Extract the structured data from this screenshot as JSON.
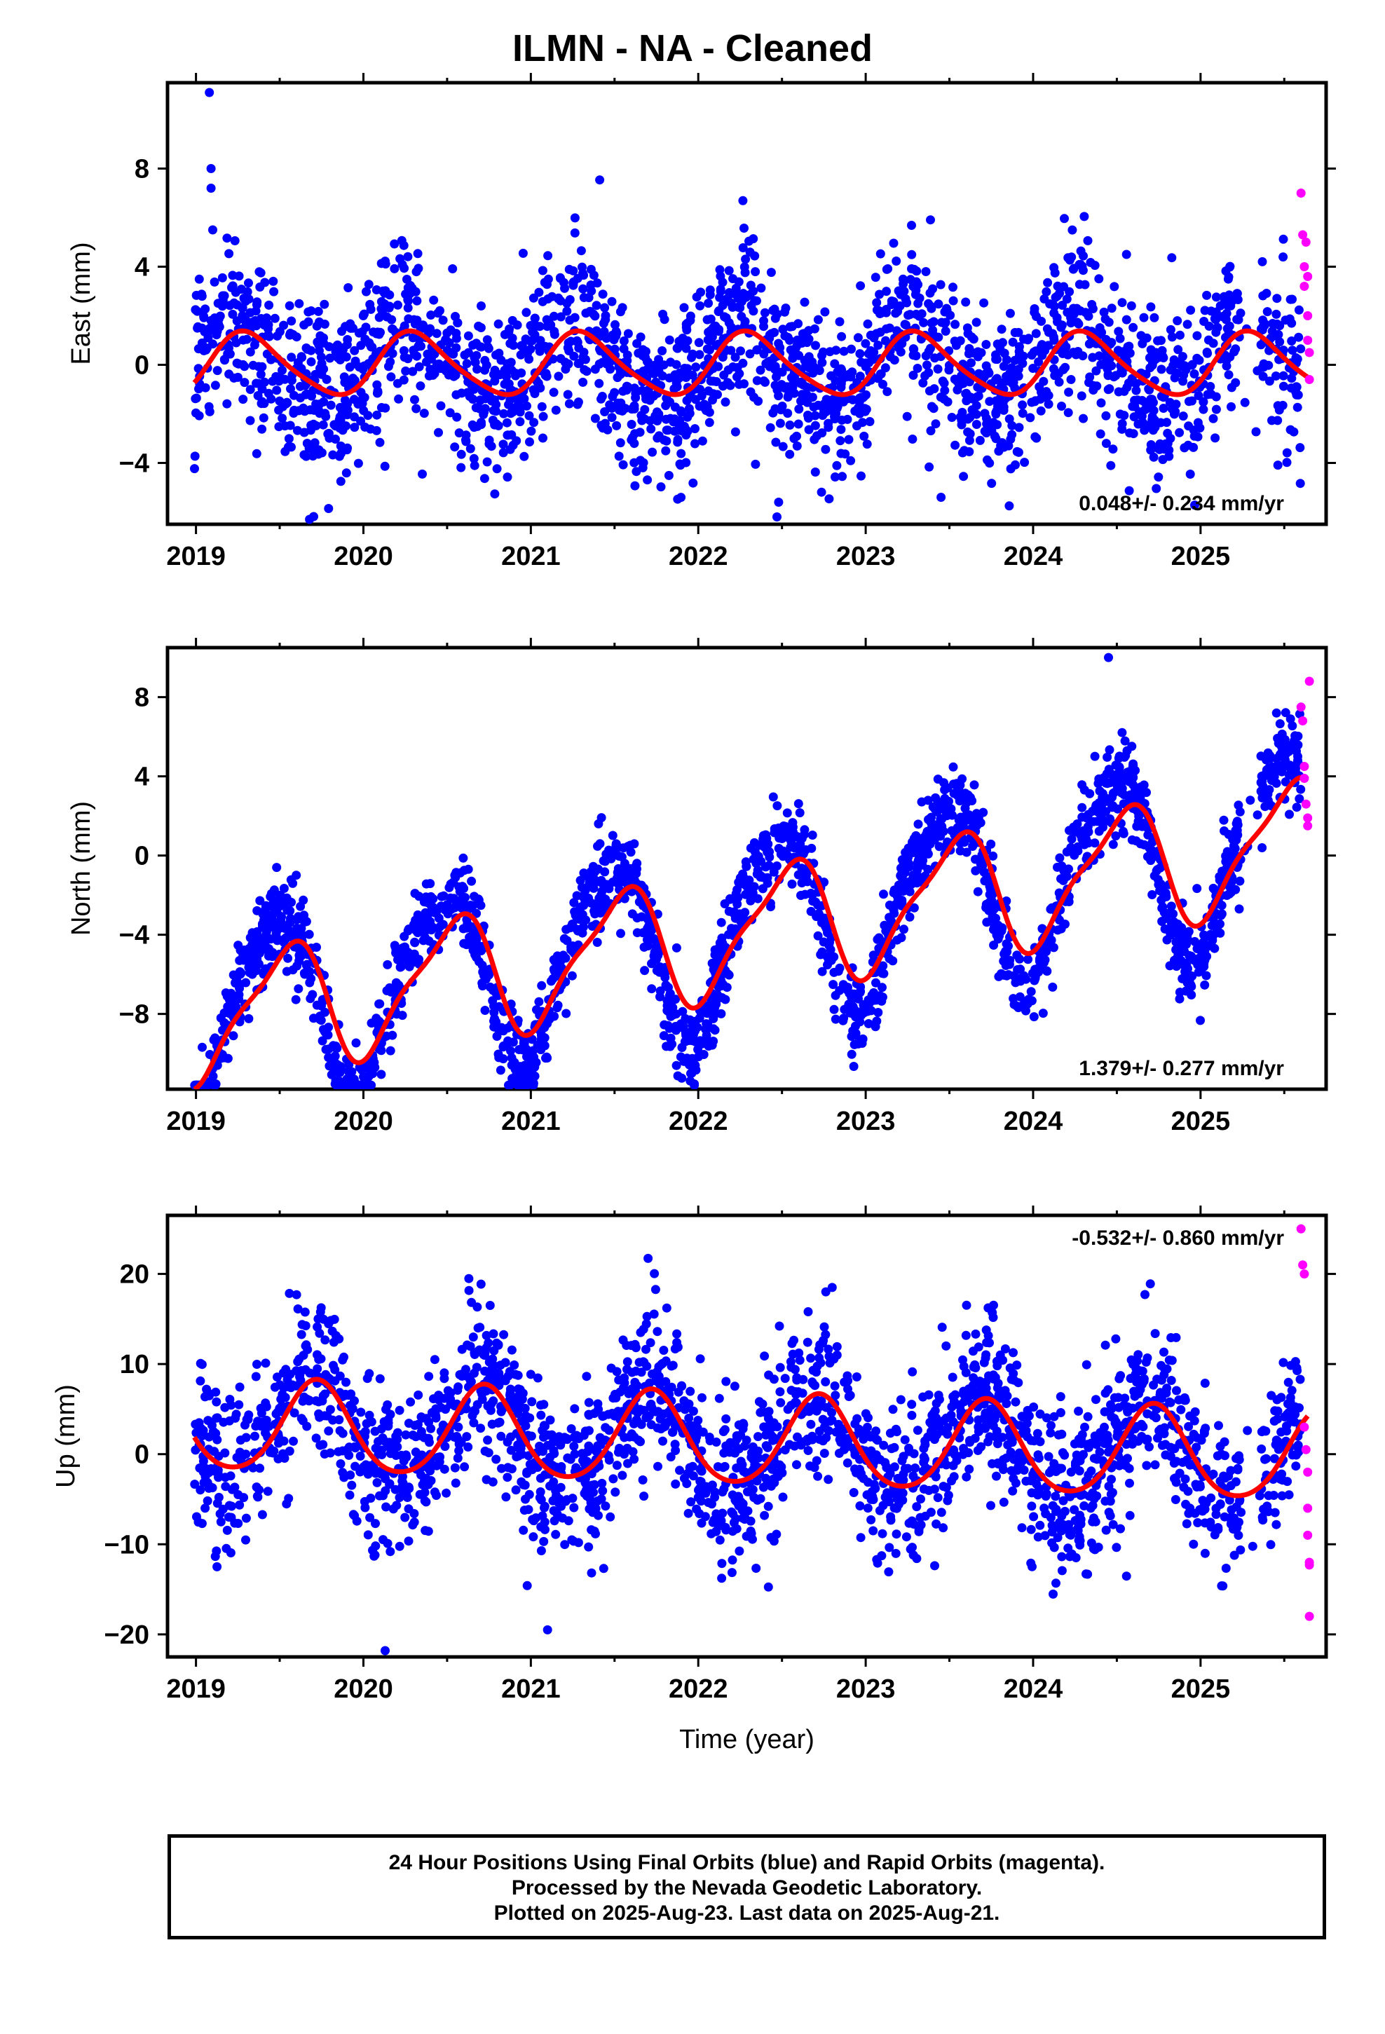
{
  "title": "ILMN  - NA - Cleaned",
  "colors": {
    "final": "#0000ff",
    "rapid": "#ff00ff",
    "model": "#ff0000",
    "axes": "#000000"
  },
  "chart_data": [
    {
      "type": "scatter",
      "ylabel": "East (mm)",
      "xlabel": "",
      "xlim": [
        2018.83,
        2025.75
      ],
      "ylim": [
        -6.5,
        11.5
      ],
      "xticks": [
        "2019",
        "2020",
        "2021",
        "2022",
        "2023",
        "2024",
        "2025"
      ],
      "yticks": [
        "-4",
        "0",
        "4",
        "8"
      ],
      "rate": "0.048+/- 0.234 mm/yr",
      "rate_pos": "bottom-right",
      "model": {
        "amp1": 1.25,
        "phase1": 0.06,
        "amp2": 0.2,
        "phase2": 0.1,
        "trend": 0.0,
        "offset": 0.0
      },
      "final_scatter": {
        "start": 2018.99,
        "end": 2025.6,
        "sd": 1.7,
        "anomaly": 0.6
      },
      "rapid_points": [
        [
          2025.6,
          7.0
        ],
        [
          2025.61,
          5.3
        ],
        [
          2025.62,
          4.0
        ],
        [
          2025.62,
          3.2
        ],
        [
          2025.63,
          5.0
        ],
        [
          2025.64,
          3.6
        ],
        [
          2025.64,
          2.0
        ],
        [
          2025.64,
          1.0
        ],
        [
          2025.65,
          0.5
        ],
        [
          2025.65,
          -0.6
        ]
      ],
      "outliers": [
        [
          2019.08,
          11.1
        ],
        [
          2019.09,
          8.0
        ],
        [
          2019.09,
          7.2
        ],
        [
          2019.1,
          5.5
        ],
        [
          2022.47,
          -6.2
        ],
        [
          2022.48,
          -5.6
        ],
        [
          2023.45,
          -5.4
        ]
      ]
    },
    {
      "type": "scatter",
      "ylabel": "North (mm)",
      "xlabel": "",
      "xlim": [
        2018.83,
        2025.75
      ],
      "ylim": [
        -11.8,
        10.5
      ],
      "xticks": [
        "2019",
        "2020",
        "2021",
        "2022",
        "2023",
        "2024",
        "2025"
      ],
      "yticks": [
        "-8",
        "-4",
        "0",
        "4",
        "8"
      ],
      "rate": "1.379+/- 0.277 mm/yr",
      "rate_pos": "bottom-right",
      "model": {
        "amp1": 3.0,
        "phase1": 0.28,
        "amp2": 0.8,
        "phase2": 0.05,
        "trend": 1.379,
        "offset": -4.2
      },
      "final_scatter": {
        "start": 2018.99,
        "end": 2025.6,
        "sd": 1.1,
        "anomaly": 2.2
      },
      "rapid_points": [
        [
          2025.6,
          7.5
        ],
        [
          2025.61,
          6.8
        ],
        [
          2025.62,
          4.5
        ],
        [
          2025.62,
          3.9
        ],
        [
          2025.63,
          2.6
        ],
        [
          2025.64,
          1.9
        ],
        [
          2025.64,
          1.5
        ],
        [
          2025.65,
          8.8
        ]
      ],
      "outliers": [
        [
          2021.0,
          -11.2
        ],
        [
          2020.93,
          -9.8
        ],
        [
          2024.45,
          10.0
        ]
      ]
    },
    {
      "type": "scatter",
      "ylabel": "Up (mm)",
      "xlabel": "Time (year)",
      "xlim": [
        2018.83,
        2025.75
      ],
      "ylim": [
        -22.5,
        26.5
      ],
      "xticks": [
        "2019",
        "2020",
        "2021",
        "2022",
        "2023",
        "2024",
        "2025"
      ],
      "yticks": [
        "-20",
        "-10",
        "0",
        "10",
        "20"
      ],
      "rate": "-0.532+/- 0.860 mm/yr",
      "rate_pos": "top-right",
      "model": {
        "amp1": 5.0,
        "phase1": 0.47,
        "amp2": 0.6,
        "phase2": 0.1,
        "trend": -0.532,
        "offset": 1.5
      },
      "final_scatter": {
        "start": 2018.99,
        "end": 2025.6,
        "sd": 4.5,
        "anomaly": 0.8
      },
      "rapid_points": [
        [
          2025.6,
          25.0
        ],
        [
          2025.61,
          21.0
        ],
        [
          2025.62,
          20.0
        ],
        [
          2025.62,
          3.0
        ],
        [
          2025.63,
          0.5
        ],
        [
          2025.64,
          -2.0
        ],
        [
          2025.64,
          -6.0
        ],
        [
          2025.64,
          -9.0
        ],
        [
          2025.65,
          -12.0
        ],
        [
          2025.65,
          -12.3
        ],
        [
          2025.65,
          -18.0
        ]
      ],
      "outliers": [
        [
          2020.13,
          -21.8
        ],
        [
          2021.1,
          -19.5
        ],
        [
          2024.7,
          18.9
        ],
        [
          2022.8,
          18.5
        ]
      ]
    }
  ],
  "footer": {
    "line1": "24 Hour Positions Using Final Orbits (blue) and Rapid Orbits (magenta).",
    "line2": "Processed by the Nevada Geodetic Laboratory.",
    "line3": "Plotted on 2025-Aug-23. Last data on 2025-Aug-21."
  }
}
